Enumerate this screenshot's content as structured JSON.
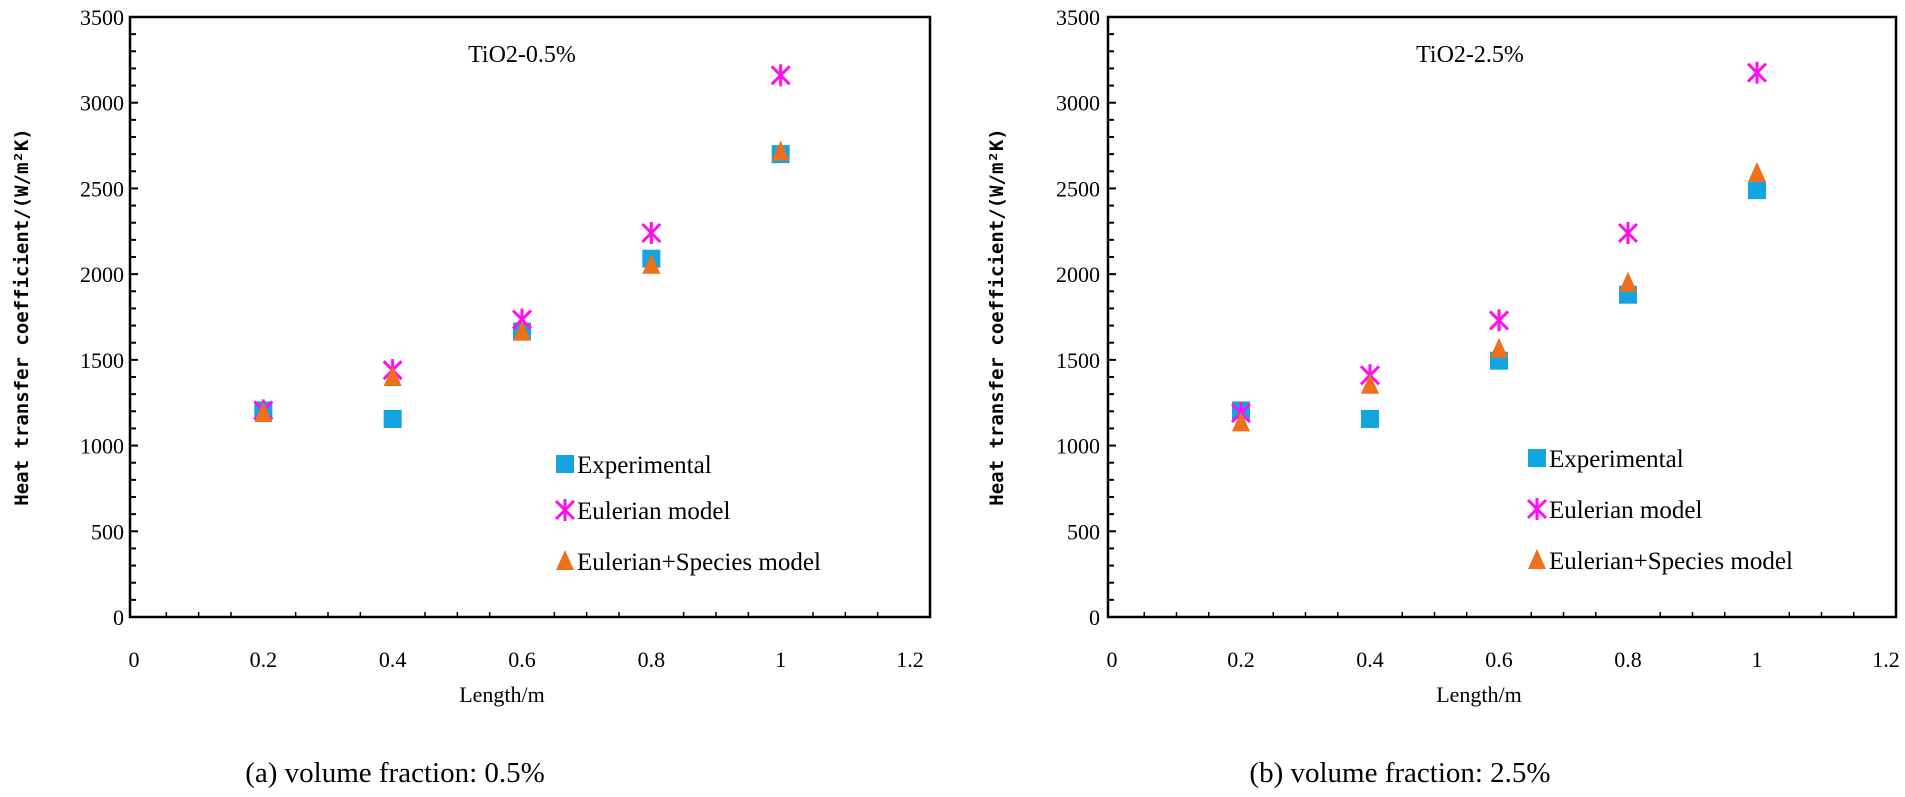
{
  "chart_data": [
    {
      "type": "scatter",
      "caption": "(a)  volume fraction: 0.5%",
      "annotation": "TiO2-0.5%",
      "xlabel": "Length/m",
      "ylabel": "Heat transfer coefficient/(W/m²K)",
      "xlim": [
        0,
        1.2
      ],
      "ylim": [
        0,
        3500
      ],
      "xticks": [
        "0",
        "0.2",
        "0.4",
        "0.6",
        "0.8",
        "1",
        "1.2"
      ],
      "yticks": [
        "0",
        "500",
        "1000",
        "1500",
        "2000",
        "2500",
        "3000",
        "3500"
      ],
      "legend_position": "bottom-right",
      "x": [
        0.2,
        0.4,
        0.6,
        0.8,
        1.0
      ],
      "series": [
        {
          "name": "Experimental",
          "marker": "square",
          "color": "#12A5E2",
          "values": [
            1205,
            1155,
            1665,
            2090,
            2700
          ]
        },
        {
          "name": "Eulerian model",
          "marker": "star",
          "color": "#FF10F0",
          "values": [
            1205,
            1440,
            1735,
            2240,
            3160
          ]
        },
        {
          "name": "Eulerian+Species model",
          "marker": "triangle",
          "color": "#EE6F1C",
          "values": [
            1190,
            1400,
            1665,
            2055,
            2715
          ]
        }
      ]
    },
    {
      "type": "scatter",
      "caption": "(b) volume fraction: 2.5%",
      "annotation": "TiO2-2.5%",
      "xlabel": "Length/m",
      "ylabel": "Heat transfer coefficient/(W/m²K)",
      "xlim": [
        0,
        1.2
      ],
      "ylim": [
        0,
        3500
      ],
      "xticks": [
        "0",
        "0.2",
        "0.4",
        "0.6",
        "0.8",
        "1",
        "1.2"
      ],
      "yticks": [
        "0",
        "500",
        "1000",
        "1500",
        "2000",
        "2500",
        "3000",
        "3500"
      ],
      "legend_position": "bottom-right",
      "x": [
        0.2,
        0.4,
        0.6,
        0.8,
        1.0
      ],
      "series": [
        {
          "name": "Experimental",
          "marker": "square",
          "color": "#12A5E2",
          "values": [
            1205,
            1155,
            1495,
            1880,
            2490
          ]
        },
        {
          "name": "Eulerian model",
          "marker": "star",
          "color": "#FF10F0",
          "values": [
            1190,
            1410,
            1730,
            2240,
            3175
          ]
        },
        {
          "name": "Eulerian+Species model",
          "marker": "triangle",
          "color": "#EE6F1C",
          "values": [
            1135,
            1355,
            1565,
            1950,
            2590
          ]
        }
      ]
    }
  ]
}
